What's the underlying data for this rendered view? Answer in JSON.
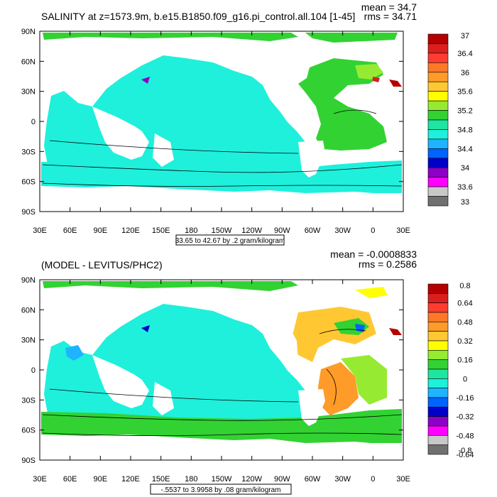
{
  "panels": [
    {
      "title": "SALINITY at z=1573.9m, b.e15.B1850.f09_g16.pi_control.all.104 [1-45]",
      "stats_mean": "mean = 34.7",
      "stats_rms": "rms = 34.71",
      "range_label": "33.65 to 42.67 by .2 gram/kilogram",
      "colorbar": {
        "colors": [
          "#b40000",
          "#dc1e1e",
          "#ff3c32",
          "#ff7828",
          "#ff9b28",
          "#ffc832",
          "#ffff00",
          "#96eb32",
          "#32d232",
          "#1ee6a0",
          "#1ef0dc",
          "#1eb4ff",
          "#0064ff",
          "#0000c8",
          "#8c00c8",
          "#ff00ff",
          "#c8c8c8",
          "#707070"
        ],
        "labels": [
          "37",
          "36.4",
          "36",
          "35.6",
          "35.2",
          "34.8",
          "34.4",
          "34",
          "33.6",
          "33"
        ]
      }
    },
    {
      "title": "(MODEL - LEVITUS/PHC2)",
      "stats_mean": "mean = -0.0008833",
      "stats_rms": "rms = 0.2586",
      "range_label": "-.5537 to 3.9958 by .08 gram/kilogram",
      "colorbar": {
        "colors": [
          "#b40000",
          "#dc1e1e",
          "#ff3c32",
          "#ff7828",
          "#ff9b28",
          "#ffc832",
          "#ffff00",
          "#96eb32",
          "#32d232",
          "#1ee6a0",
          "#1ef0dc",
          "#1eb4ff",
          "#0064ff",
          "#0000c8",
          "#8c00c8",
          "#ff00ff",
          "#c8c8c8",
          "#707070"
        ],
        "labels": [
          "0.8",
          "0.64",
          "0.48",
          "0.32",
          "0.16",
          "0",
          "-0.16",
          "-0.32",
          "-0.48",
          "-0.64",
          "-0.8"
        ]
      }
    }
  ],
  "lat_labels": [
    "90N",
    "60N",
    "30N",
    "0",
    "30S",
    "60S",
    "90S"
  ],
  "lon_labels": [
    "30E",
    "60E",
    "90E",
    "120E",
    "150E",
    "180",
    "150W",
    "120W",
    "90W",
    "60W",
    "30W",
    "0",
    "30E"
  ]
}
